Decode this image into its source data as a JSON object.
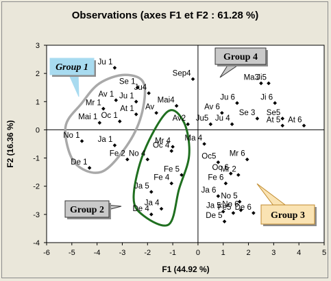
{
  "chart_data": {
    "type": "scatter",
    "title": "Observations (axes F1 et F2 : 61.28 %)",
    "xlabel": "F1 (44.92 %)",
    "ylabel": "F2 (16.36 %)",
    "xlim": [
      -6,
      5
    ],
    "ylim": [
      -4,
      3
    ],
    "xticks": [
      -6,
      -5,
      -4,
      -3,
      -2,
      -1,
      0,
      1,
      2,
      3,
      4,
      5
    ],
    "yticks": [
      -4,
      -3,
      -2,
      -1,
      0,
      1,
      2,
      3
    ],
    "grid": false,
    "reference_lines": [
      0
    ],
    "points": [
      {
        "label": "Ju 1",
        "x": -3.3,
        "y": 2.2
      },
      {
        "label": "Se 1",
        "x": -2.4,
        "y": 1.5
      },
      {
        "label": "Ju 1",
        "x": -2.45,
        "y": 1.0
      },
      {
        "label": "Av 1",
        "x": -3.25,
        "y": 1.05
      },
      {
        "label": "Mr 1",
        "x": -3.75,
        "y": 0.75
      },
      {
        "label": "At 1",
        "x": -2.45,
        "y": 0.55
      },
      {
        "label": "Mai 1",
        "x": -3.9,
        "y": 0.25
      },
      {
        "label": "Oc 1",
        "x": -3.1,
        "y": 0.3
      },
      {
        "label": "No 1",
        "x": -4.6,
        "y": -0.4
      },
      {
        "label": "Ja 1",
        "x": -3.3,
        "y": -0.55
      },
      {
        "label": "Fe 2",
        "x": -2.8,
        "y": -1.05
      },
      {
        "label": "De 1",
        "x": -4.3,
        "y": -1.35
      },
      {
        "label": "Ju4",
        "x": -1.95,
        "y": 1.3
      },
      {
        "label": "Sep4",
        "x": -0.2,
        "y": 1.8
      },
      {
        "label": "Av",
        "x": -1.65,
        "y": 0.6
      },
      {
        "label": "Mai4",
        "x": -0.85,
        "y": 0.85
      },
      {
        "label": "Av2",
        "x": -0.4,
        "y": 0.2
      },
      {
        "label": "Mr 4",
        "x": -1.0,
        "y": -0.6
      },
      {
        "label": "Oc 4",
        "x": -1.05,
        "y": -0.75
      },
      {
        "label": "No 4",
        "x": -2.0,
        "y": -1.05
      },
      {
        "label": "Fe 5",
        "x": -0.65,
        "y": -1.6
      },
      {
        "label": "Fe 4",
        "x": -1.05,
        "y": -1.9
      },
      {
        "label": "Ja 5",
        "x": -1.85,
        "y": -2.2
      },
      {
        "label": "De 4",
        "x": -1.85,
        "y": -3.0
      },
      {
        "label": "Ja 4",
        "x": -1.45,
        "y": -2.8
      },
      {
        "label": "Ma3",
        "x": 2.5,
        "y": 1.65
      },
      {
        "label": "Ji5",
        "x": 2.8,
        "y": 1.65
      },
      {
        "label": "Ju 6",
        "x": 1.55,
        "y": 0.95
      },
      {
        "label": "Ji 6",
        "x": 3.05,
        "y": 0.95
      },
      {
        "label": "Av 6",
        "x": 0.95,
        "y": 0.6
      },
      {
        "label": "Se 3",
        "x": 2.35,
        "y": 0.4
      },
      {
        "label": "Se5",
        "x": 3.35,
        "y": 0.4
      },
      {
        "label": "Ju 4",
        "x": 1.35,
        "y": 0.2
      },
      {
        "label": "Ju5",
        "x": 0.5,
        "y": 0.2
      },
      {
        "label": "At 5",
        "x": 3.35,
        "y": 0.15
      },
      {
        "label": "At 6",
        "x": 4.2,
        "y": 0.15
      },
      {
        "label": "Ma 4",
        "x": 0.25,
        "y": -0.5
      },
      {
        "label": "Oc5",
        "x": 0.8,
        "y": -1.15
      },
      {
        "label": "Mr 6",
        "x": 1.95,
        "y": -1.05
      },
      {
        "label": "Oc 6",
        "x": 1.3,
        "y": -1.55
      },
      {
        "label": "Mr 2",
        "x": 1.6,
        "y": -1.6
      },
      {
        "label": "Fe 6",
        "x": 1.1,
        "y": -1.9
      },
      {
        "label": "Ja 6",
        "x": 0.8,
        "y": -2.35
      },
      {
        "label": "No 5",
        "x": 1.65,
        "y": -2.55
      },
      {
        "label": "No 6",
        "x": 1.7,
        "y": -2.85
      },
      {
        "label": "Ja 5",
        "x": 1.0,
        "y": -2.9
      },
      {
        "label": "Fe5",
        "x": 1.4,
        "y": -2.95
      },
      {
        "label": "De 6",
        "x": 2.2,
        "y": -2.95
      },
      {
        "label": "De 5",
        "x": 1.05,
        "y": -3.25
      }
    ],
    "annotations": [
      {
        "text": "Group 1",
        "bg": "#a8dbf0",
        "border": "#a8dbf0"
      },
      {
        "text": "Group 2",
        "bg": "#c9c9c9",
        "border": "#333333"
      },
      {
        "text": "Group 3",
        "bg": "#fae3b3",
        "border": "#c08a2c"
      },
      {
        "text": "Group 4",
        "bg": "#c9c9c9",
        "border": "#333333"
      }
    ],
    "colors": {
      "group1_outline": "#a9a9a9",
      "group2_outline": "#1f6f1f",
      "points": "#000000",
      "plot_background": "#ffffff",
      "page_background": "#eae7da"
    }
  }
}
